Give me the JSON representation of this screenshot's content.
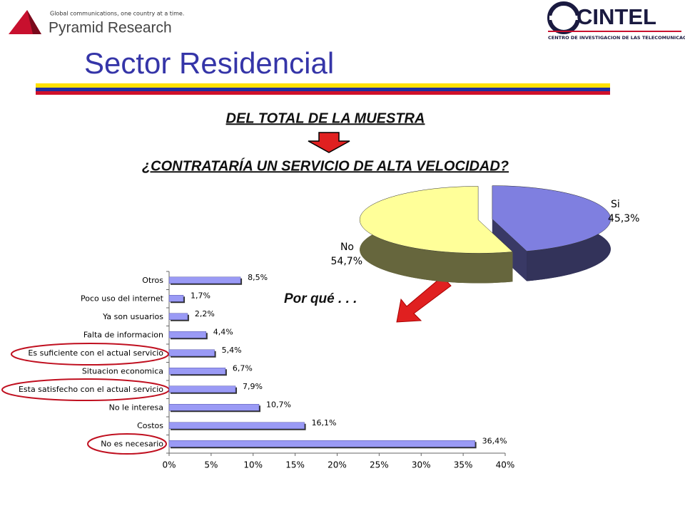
{
  "header": {
    "tagline": "Global communications, one country at a time.",
    "left_logo": "Pyramid Research",
    "right_logo": "CINTEL",
    "right_logo_sub": "CENTRO DE INVESTIGACION DE LAS TELECOMUNICACIONES",
    "title": "Sector Residencial"
  },
  "subtitle": "DEL TOTAL DE LA MUESTRA",
  "question": "¿CONTRATARÍA UN SERVICIO DE ALTA VELOCIDAD?",
  "callout": "Por qué . . .",
  "chart_data": [
    {
      "type": "pie",
      "categories": [
        "Si",
        "No"
      ],
      "values": [
        45.3,
        54.7
      ],
      "value_labels": [
        "45,3%",
        "54,7%"
      ],
      "colors": [
        "#7f7fe0",
        "#ffff99"
      ]
    },
    {
      "type": "bar",
      "orientation": "horizontal",
      "categories": [
        "Otros",
        "Poco uso del internet",
        "Ya son usuarios",
        "Falta de informacion",
        "Es suficiente con el actual servicio",
        "Situacion economica",
        "Esta satisfecho con el actual servicio",
        "No le interesa",
        "Costos",
        "No es necesario"
      ],
      "values": [
        8.5,
        1.7,
        2.2,
        4.4,
        5.4,
        6.7,
        7.9,
        10.7,
        16.1,
        36.4
      ],
      "value_labels": [
        "8,5%",
        "1,7%",
        "2,2%",
        "4,4%",
        "5,4%",
        "6,7%",
        "7,9%",
        "10,7%",
        "16,1%",
        "36,4%"
      ],
      "color": "#9a9af5",
      "xlim": [
        0,
        40
      ],
      "xticks": [
        {
          "value": 0,
          "label": "0%"
        },
        {
          "value": 5,
          "label": "5%"
        },
        {
          "value": 10,
          "label": "10%"
        },
        {
          "value": 15,
          "label": "15%"
        },
        {
          "value": 20,
          "label": "20%"
        },
        {
          "value": 25,
          "label": "25%"
        },
        {
          "value": 30,
          "label": "30%"
        },
        {
          "value": 35,
          "label": "35%"
        },
        {
          "value": 40,
          "label": "40%"
        }
      ]
    }
  ]
}
